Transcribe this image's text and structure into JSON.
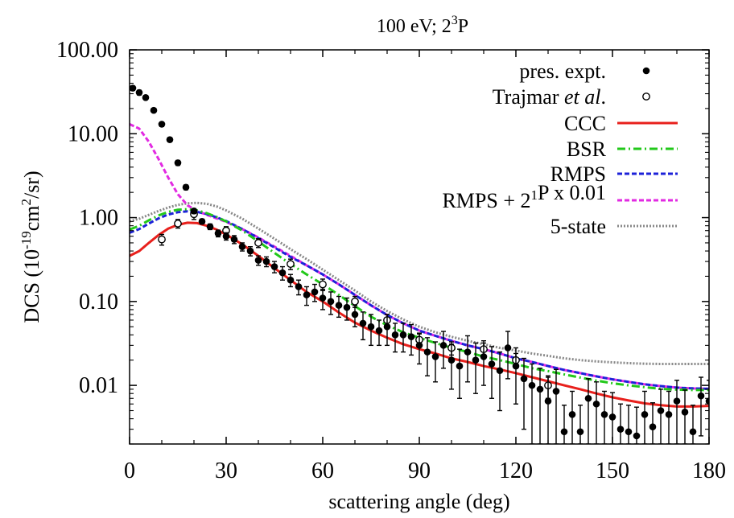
{
  "chart_data": {
    "type": "line",
    "title": "100 eV; 2",
    "title_sup": "3",
    "title_tail": "P",
    "xlabel": "scattering angle (deg)",
    "ylabel_pre": "DCS (10",
    "ylabel_sup1": "-19",
    "ylabel_mid": "cm",
    "ylabel_sup2": "2",
    "ylabel_post": "/sr)",
    "xlim": [
      0,
      180
    ],
    "ylim": [
      0.002,
      100
    ],
    "yscale": "log",
    "grid": false,
    "legend_position": "top-right",
    "xticks": [
      0,
      30,
      60,
      90,
      120,
      150,
      180
    ],
    "xtick_labels": [
      "0",
      "30",
      "60",
      "90",
      "120",
      "150",
      "180"
    ],
    "yticks": [
      0.01,
      0.1,
      1,
      10,
      100
    ],
    "ytick_labels": [
      "0.01",
      "0.10",
      "1.00",
      "10.00",
      "100.00"
    ],
    "legend": [
      {
        "key": "pres",
        "parts": [
          {
            "t": "pres. expt."
          }
        ]
      },
      {
        "key": "traj",
        "parts": [
          {
            "t": "Trajmar "
          },
          {
            "t": "et al",
            "italic": true
          },
          {
            "t": "."
          }
        ]
      },
      {
        "key": "ccc",
        "parts": [
          {
            "t": "CCC"
          }
        ]
      },
      {
        "key": "bsr",
        "parts": [
          {
            "t": "BSR"
          }
        ]
      },
      {
        "key": "rmps",
        "parts": [
          {
            "t": "RMPS"
          }
        ]
      },
      {
        "key": "rmps2",
        "parts": [
          {
            "t": "RMPS + 2"
          },
          {
            "t": "1",
            "sup": true
          },
          {
            "t": "P x 0.01"
          }
        ]
      },
      {
        "key": "five",
        "parts": [
          {
            "t": "5-state"
          }
        ]
      }
    ],
    "series": [
      {
        "key": "ccc",
        "type": "line",
        "color": "#e8201c",
        "dash": "",
        "width": 3,
        "x": [
          0,
          3,
          6,
          9,
          12,
          15,
          18,
          21,
          24,
          27,
          30,
          35,
          40,
          45,
          50,
          55,
          60,
          65,
          70,
          75,
          80,
          85,
          90,
          95,
          100,
          105,
          110,
          115,
          120,
          125,
          130,
          135,
          140,
          145,
          150,
          155,
          160,
          165,
          170,
          175,
          180
        ],
        "y": [
          0.35,
          0.4,
          0.5,
          0.62,
          0.74,
          0.82,
          0.87,
          0.86,
          0.8,
          0.72,
          0.63,
          0.48,
          0.35,
          0.25,
          0.18,
          0.13,
          0.1,
          0.074,
          0.056,
          0.045,
          0.037,
          0.031,
          0.027,
          0.024,
          0.021,
          0.019,
          0.017,
          0.0155,
          0.014,
          0.0125,
          0.0112,
          0.01,
          0.009,
          0.008,
          0.0072,
          0.0066,
          0.0061,
          0.0058,
          0.0056,
          0.0056,
          0.0057
        ]
      },
      {
        "key": "bsr",
        "type": "line",
        "color": "#22c81a",
        "dash": "10 4 2 4",
        "width": 3,
        "x": [
          0,
          3,
          6,
          9,
          12,
          15,
          18,
          21,
          24,
          27,
          30,
          35,
          40,
          45,
          50,
          55,
          60,
          65,
          70,
          75,
          80,
          85,
          90,
          95,
          100,
          105,
          110,
          115,
          120,
          125,
          130,
          135,
          140,
          145,
          150,
          155,
          160,
          165,
          170,
          175,
          180
        ],
        "y": [
          0.72,
          0.8,
          0.93,
          1.06,
          1.17,
          1.24,
          1.26,
          1.22,
          1.13,
          1.02,
          0.9,
          0.7,
          0.52,
          0.38,
          0.28,
          0.21,
          0.16,
          0.12,
          0.088,
          0.066,
          0.052,
          0.043,
          0.037,
          0.032,
          0.028,
          0.025,
          0.022,
          0.02,
          0.018,
          0.016,
          0.0148,
          0.0135,
          0.0124,
          0.0114,
          0.0106,
          0.01,
          0.0095,
          0.0091,
          0.0089,
          0.0088,
          0.0088
        ]
      },
      {
        "key": "rmps",
        "type": "line",
        "color": "#1c22d8",
        "dash": "6 3",
        "width": 3,
        "x": [
          0,
          3,
          6,
          9,
          12,
          15,
          18,
          21,
          24,
          27,
          30,
          35,
          40,
          45,
          50,
          55,
          60,
          65,
          70,
          75,
          80,
          85,
          90,
          95,
          100,
          105,
          110,
          115,
          120,
          125,
          130,
          135,
          140,
          145,
          150,
          155,
          160,
          165,
          170,
          175,
          180
        ],
        "y": [
          0.66,
          0.73,
          0.85,
          0.98,
          1.09,
          1.16,
          1.19,
          1.17,
          1.1,
          1.01,
          0.91,
          0.73,
          0.57,
          0.44,
          0.34,
          0.27,
          0.21,
          0.16,
          0.12,
          0.09,
          0.069,
          0.055,
          0.045,
          0.039,
          0.034,
          0.03,
          0.027,
          0.024,
          0.021,
          0.019,
          0.017,
          0.0153,
          0.014,
          0.0128,
          0.0118,
          0.011,
          0.0103,
          0.0098,
          0.0094,
          0.0092,
          0.0091
        ]
      },
      {
        "key": "rmps2",
        "type": "line",
        "color": "#e22ae2",
        "dash": "6 3",
        "width": 3,
        "x": [
          0,
          3,
          6,
          9,
          12,
          15,
          18,
          21,
          24,
          27,
          30,
          35,
          40,
          45,
          50,
          55,
          60,
          65,
          70,
          75,
          80,
          85,
          90,
          95,
          100,
          105,
          110,
          115,
          120,
          125,
          130,
          135,
          140,
          145,
          150,
          155,
          160,
          165,
          170,
          175,
          180
        ],
        "y": [
          13.0,
          11.5,
          8.0,
          5.0,
          3.0,
          1.9,
          1.4,
          1.2,
          1.08,
          0.98,
          0.89,
          0.73,
          0.58,
          0.45,
          0.35,
          0.27,
          0.21,
          0.16,
          0.12,
          0.09,
          0.069,
          0.055,
          0.045,
          0.039,
          0.034,
          0.03,
          0.027,
          0.024,
          0.021,
          0.019,
          0.017,
          0.0153,
          0.014,
          0.0128,
          0.0118,
          0.011,
          0.0103,
          0.0098,
          0.0094,
          0.0092,
          0.0091
        ]
      },
      {
        "key": "five",
        "type": "line",
        "color": "#888888",
        "dash": "2 2",
        "width": 3,
        "x": [
          0,
          3,
          6,
          9,
          12,
          15,
          18,
          21,
          24,
          27,
          30,
          35,
          40,
          45,
          50,
          55,
          60,
          65,
          70,
          75,
          80,
          85,
          90,
          95,
          100,
          105,
          110,
          115,
          120,
          125,
          130,
          135,
          140,
          145,
          150,
          155,
          160,
          165,
          170,
          175,
          180
        ],
        "y": [
          0.9,
          0.97,
          1.08,
          1.2,
          1.32,
          1.42,
          1.48,
          1.5,
          1.46,
          1.36,
          1.22,
          0.97,
          0.74,
          0.56,
          0.42,
          0.32,
          0.24,
          0.18,
          0.135,
          0.1,
          0.077,
          0.061,
          0.05,
          0.043,
          0.038,
          0.034,
          0.031,
          0.028,
          0.026,
          0.024,
          0.0225,
          0.021,
          0.02,
          0.0193,
          0.0188,
          0.0184,
          0.0181,
          0.018,
          0.018,
          0.018,
          0.018
        ]
      },
      {
        "key": "pres",
        "type": "scatter",
        "marker": "filled",
        "color": "#000000",
        "x": [
          1,
          3,
          5,
          7.5,
          10,
          12.5,
          15,
          17.5,
          20,
          22.5,
          25,
          27.5,
          30,
          32.5,
          35,
          37.5,
          40,
          42.5,
          45,
          47.5,
          50,
          52.5,
          55,
          57.5,
          60,
          62.5,
          65,
          67.5,
          70,
          72.5,
          75,
          77.5,
          80,
          82.5,
          85,
          87.5,
          90,
          92.5,
          95,
          97.5,
          100,
          102.5,
          105,
          107.5,
          110,
          112.5,
          115,
          117.5,
          120,
          122.5,
          125,
          127.5,
          130,
          132.5,
          135,
          137.5,
          140,
          142.5,
          145,
          147.5,
          150,
          152.5,
          155,
          157.5,
          160,
          162.5,
          165,
          167.5,
          170,
          172.5,
          175,
          177.5,
          180
        ],
        "y": [
          35,
          31,
          27,
          19,
          13,
          8.5,
          4.5,
          2.3,
          1.2,
          0.9,
          0.78,
          0.65,
          0.6,
          0.55,
          0.45,
          0.4,
          0.31,
          0.3,
          0.26,
          0.22,
          0.18,
          0.15,
          0.12,
          0.13,
          0.11,
          0.1,
          0.09,
          0.085,
          0.07,
          0.055,
          0.05,
          0.045,
          0.05,
          0.04,
          0.04,
          0.038,
          0.03,
          0.025,
          0.022,
          0.03,
          0.02,
          0.017,
          0.025,
          0.02,
          0.022,
          0.018,
          0.015,
          0.028,
          0.017,
          0.012,
          0.01,
          0.009,
          0.0065,
          0.0085,
          0.0028,
          0.0045,
          0.0028,
          0.007,
          0.006,
          0.0045,
          0.0042,
          0.003,
          0.0028,
          0.0025,
          0.0045,
          0.0032,
          0.005,
          0.0045,
          0.0065,
          0.0048,
          0.0028,
          0.0075,
          0.0065
        ],
        "err": [
          2,
          2,
          1.5,
          1,
          0.8,
          0.5,
          0.3,
          0.15,
          0.08,
          0.06,
          0.06,
          0.06,
          0.06,
          0.06,
          0.05,
          0.05,
          0.04,
          0.04,
          0.04,
          0.04,
          0.03,
          0.03,
          0.03,
          0.03,
          0.03,
          0.03,
          0.025,
          0.025,
          0.02,
          0.02,
          0.02,
          0.015,
          0.02,
          0.015,
          0.015,
          0.015,
          0.012,
          0.012,
          0.011,
          0.014,
          0.011,
          0.01,
          0.014,
          0.012,
          0.012,
          0.011,
          0.01,
          0.016,
          0.011,
          0.009,
          0.008,
          0.007,
          0.006,
          0.007,
          0.003,
          0.004,
          0.003,
          0.005,
          0.005,
          0.004,
          0.004,
          0.003,
          0.003,
          0.003,
          0.004,
          0.003,
          0.004,
          0.004,
          0.005,
          0.004,
          0.003,
          0.005,
          0.005
        ]
      },
      {
        "key": "traj",
        "type": "scatter",
        "marker": "open",
        "color": "#000000",
        "x": [
          10,
          15,
          20,
          30,
          40,
          50,
          60,
          70,
          80,
          90,
          100,
          110,
          120,
          130
        ],
        "y": [
          0.55,
          0.85,
          1.1,
          0.7,
          0.5,
          0.28,
          0.16,
          0.1,
          0.06,
          0.035,
          0.028,
          0.027,
          0.02,
          0.01
        ],
        "err": [
          0.08,
          0.1,
          0.15,
          0.08,
          0.06,
          0.04,
          0.025,
          0.015,
          0.01,
          0.006,
          0.005,
          0.005,
          0.004,
          0.003
        ]
      }
    ]
  }
}
